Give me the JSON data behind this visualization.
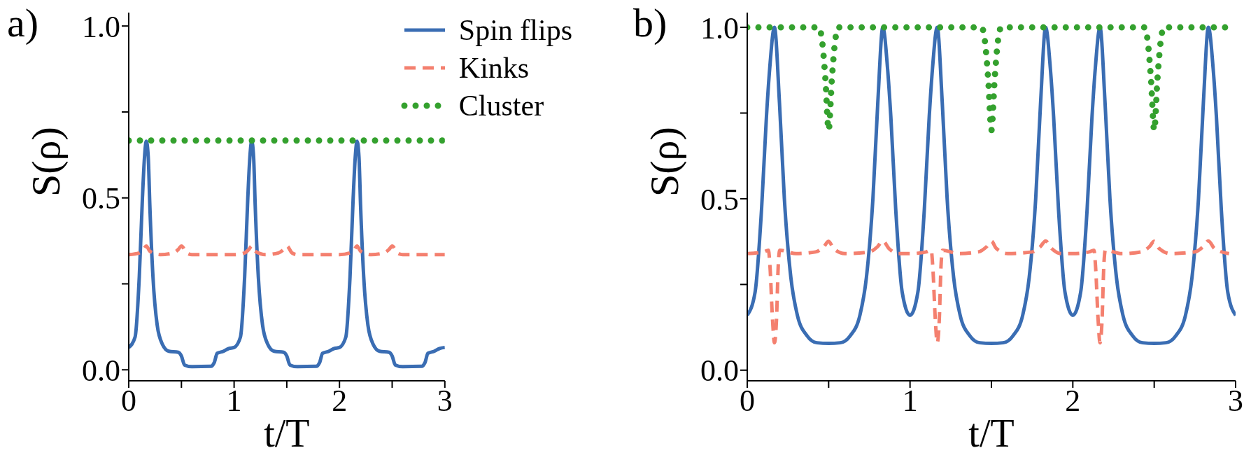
{
  "chart_data": [
    {
      "type": "line",
      "title": "a)",
      "xlabel": "t/T",
      "ylabel": "S(ρ)",
      "xlim": [
        0,
        3
      ],
      "ylim": [
        -0.032,
        1.039
      ],
      "xticks": [
        0,
        {
          "value": 0.5,
          "label": null
        },
        1,
        {
          "value": 1.5,
          "label": null
        },
        2,
        {
          "value": 2.5,
          "label": null
        },
        3
      ],
      "yticks": [
        {
          "value": 0,
          "label": "0.0"
        },
        {
          "value": 0.25,
          "label": null
        },
        {
          "value": 0.5,
          "label": "0.5"
        },
        {
          "value": 0.75,
          "label": null
        },
        {
          "value": 1,
          "label": "1.0"
        }
      ],
      "legend": "top right",
      "marker": "none",
      "series": [
        {
          "name": "Spin flips",
          "color": "#3a6db3",
          "line_style": "solid",
          "x": [
            0,
            0.06,
            0.1,
            0.13,
            0.15,
            0.167,
            0.185,
            0.2,
            0.23,
            0.27,
            0.32,
            0.38,
            0.47,
            0.5,
            0.53,
            0.6,
            0.78,
            0.81,
            0.84,
            0.9,
            0.95,
            1,
            1.06,
            1.1,
            1.13,
            1.15,
            1.167,
            1.185,
            1.2,
            1.23,
            1.27,
            1.32,
            1.38,
            1.47,
            1.5,
            1.53,
            1.6,
            1.78,
            1.81,
            1.84,
            1.9,
            1.95,
            2,
            2.06,
            2.1,
            2.13,
            2.15,
            2.167,
            2.185,
            2.2,
            2.23,
            2.27,
            2.32,
            2.38,
            2.47,
            2.5,
            2.53,
            2.6,
            2.78,
            2.81,
            2.84,
            2.9,
            2.95,
            3
          ],
          "values": [
            0.065,
            0.095,
            0.27,
            0.5,
            0.62,
            0.665,
            0.62,
            0.48,
            0.27,
            0.13,
            0.074,
            0.054,
            0.051,
            0.04,
            0.014,
            0.009,
            0.01,
            0.02,
            0.048,
            0.054,
            0.062,
            0.065,
            0.095,
            0.27,
            0.5,
            0.62,
            0.665,
            0.62,
            0.48,
            0.27,
            0.13,
            0.074,
            0.054,
            0.051,
            0.04,
            0.014,
            0.009,
            0.01,
            0.02,
            0.048,
            0.054,
            0.062,
            0.065,
            0.095,
            0.27,
            0.5,
            0.62,
            0.665,
            0.62,
            0.48,
            0.27,
            0.13,
            0.074,
            0.054,
            0.051,
            0.04,
            0.014,
            0.009,
            0.01,
            0.02,
            0.048,
            0.054,
            0.062,
            0.065
          ]
        },
        {
          "name": "Kinks",
          "color": "#f4806f",
          "line_style": "dashed",
          "x": [
            0,
            0.1,
            0.14,
            0.167,
            0.2,
            0.3,
            0.42,
            0.47,
            0.5,
            0.55,
            0.6,
            0.8,
            0.9,
            1,
            1.1,
            1.14,
            1.167,
            1.2,
            1.3,
            1.42,
            1.47,
            1.5,
            1.55,
            1.6,
            1.8,
            1.9,
            2,
            2.1,
            2.14,
            2.167,
            2.2,
            2.3,
            2.42,
            2.47,
            2.5,
            2.55,
            2.6,
            2.8,
            2.9,
            3
          ],
          "values": [
            0.335,
            0.34,
            0.35,
            0.36,
            0.345,
            0.335,
            0.34,
            0.35,
            0.36,
            0.34,
            0.335,
            0.335,
            0.335,
            0.335,
            0.34,
            0.35,
            0.36,
            0.345,
            0.335,
            0.34,
            0.35,
            0.36,
            0.34,
            0.335,
            0.335,
            0.335,
            0.335,
            0.34,
            0.35,
            0.36,
            0.345,
            0.335,
            0.34,
            0.35,
            0.36,
            0.34,
            0.335,
            0.335,
            0.335,
            0.335
          ]
        },
        {
          "name": "Cluster",
          "color": "#34a12e",
          "line_style": "dotted",
          "x": [
            0,
            3
          ],
          "values": [
            0.667,
            0.667
          ]
        }
      ]
    },
    {
      "type": "line",
      "title": "b)",
      "xlabel": "t/T",
      "ylabel": "S(ρ)",
      "xlim": [
        0,
        3
      ],
      "ylim": [
        -0.031,
        1.043
      ],
      "xticks": [
        0,
        {
          "value": 0.5,
          "label": null
        },
        1,
        {
          "value": 1.5,
          "label": null
        },
        2,
        {
          "value": 2.5,
          "label": null
        },
        3
      ],
      "yticks": [
        {
          "value": 0,
          "label": "0.0"
        },
        {
          "value": 0.25,
          "label": null
        },
        {
          "value": 0.5,
          "label": "0.5"
        },
        {
          "value": 0.75,
          "label": null
        },
        {
          "value": 1,
          "label": "1.0"
        }
      ],
      "marker": "none",
      "series": [
        {
          "color": "#3a6db3",
          "line_style": "solid",
          "x": [
            0,
            0.048,
            0.088,
            0.118,
            0.138,
            0.167,
            0.198,
            0.228,
            0.268,
            0.308,
            0.368,
            0.428,
            0.5,
            0.572,
            0.632,
            0.692,
            0.732,
            0.772,
            0.802,
            0.833,
            0.862,
            0.882,
            0.912,
            0.952,
            1,
            1.048,
            1.088,
            1.118,
            1.138,
            1.167,
            1.198,
            1.228,
            1.268,
            1.308,
            1.368,
            1.428,
            1.5,
            1.572,
            1.632,
            1.692,
            1.732,
            1.772,
            1.802,
            1.833,
            1.862,
            1.882,
            1.912,
            1.952,
            2,
            2.048,
            2.088,
            2.118,
            2.138,
            2.167,
            2.198,
            2.228,
            2.268,
            2.308,
            2.368,
            2.428,
            2.5,
            2.572,
            2.632,
            2.692,
            2.732,
            2.772,
            2.802,
            2.833,
            2.862,
            2.882,
            2.912,
            2.952,
            3
          ],
          "values": [
            0.16,
            0.227,
            0.47,
            0.74,
            0.88,
            1.0,
            0.78,
            0.5,
            0.27,
            0.16,
            0.1,
            0.08,
            0.078,
            0.08,
            0.1,
            0.16,
            0.27,
            0.5,
            0.78,
            1.0,
            0.88,
            0.74,
            0.47,
            0.227,
            0.16,
            0.227,
            0.47,
            0.74,
            0.88,
            1.0,
            0.78,
            0.5,
            0.27,
            0.16,
            0.1,
            0.08,
            0.078,
            0.08,
            0.1,
            0.16,
            0.27,
            0.5,
            0.78,
            1.0,
            0.88,
            0.74,
            0.47,
            0.227,
            0.16,
            0.227,
            0.47,
            0.74,
            0.88,
            1.0,
            0.78,
            0.5,
            0.27,
            0.16,
            0.1,
            0.08,
            0.078,
            0.08,
            0.1,
            0.16,
            0.27,
            0.5,
            0.78,
            1.0,
            0.88,
            0.74,
            0.47,
            0.227,
            0.16
          ]
        },
        {
          "color": "#f4806f",
          "line_style": "dashed",
          "x": [
            0,
            0.1,
            0.13,
            0.14,
            0.155,
            0.167,
            0.18,
            0.19,
            0.2,
            0.3,
            0.42,
            0.47,
            0.5,
            0.53,
            0.6,
            0.75,
            0.8,
            0.833,
            0.87,
            0.93,
            1,
            1.1,
            1.13,
            1.14,
            1.155,
            1.167,
            1.18,
            1.19,
            1.2,
            1.3,
            1.42,
            1.47,
            1.5,
            1.53,
            1.6,
            1.75,
            1.8,
            1.833,
            1.87,
            1.93,
            2,
            2.1,
            2.13,
            2.14,
            2.155,
            2.167,
            2.18,
            2.19,
            2.2,
            2.3,
            2.42,
            2.47,
            2.5,
            2.53,
            2.6,
            2.75,
            2.8,
            2.833,
            2.87,
            2.96
          ],
          "values": [
            0.34,
            0.345,
            0.35,
            0.3,
            0.15,
            0.08,
            0.15,
            0.3,
            0.35,
            0.34,
            0.345,
            0.36,
            0.376,
            0.355,
            0.34,
            0.345,
            0.36,
            0.377,
            0.355,
            0.34,
            0.34,
            0.345,
            0.35,
            0.3,
            0.15,
            0.08,
            0.15,
            0.3,
            0.35,
            0.34,
            0.345,
            0.36,
            0.376,
            0.355,
            0.34,
            0.345,
            0.36,
            0.377,
            0.355,
            0.34,
            0.34,
            0.345,
            0.35,
            0.3,
            0.15,
            0.08,
            0.15,
            0.3,
            0.35,
            0.34,
            0.345,
            0.36,
            0.376,
            0.355,
            0.34,
            0.345,
            0.36,
            0.377,
            0.355,
            0.34
          ]
        },
        {
          "color": "#34a12e",
          "line_style": "dotted",
          "x": [
            0,
            0.44,
            0.46,
            0.48,
            0.5,
            0.52,
            0.54,
            0.56,
            1,
            1.44,
            1.46,
            1.48,
            1.5,
            1.52,
            1.54,
            1.56,
            2,
            2.44,
            2.46,
            2.48,
            2.5,
            2.52,
            2.54,
            2.56,
            3
          ],
          "values": [
            1.0,
            1.0,
            0.96,
            0.85,
            0.7,
            0.85,
            0.96,
            1.0,
            1.0,
            1.0,
            0.96,
            0.85,
            0.7,
            0.85,
            0.96,
            1.0,
            1.0,
            1.0,
            0.96,
            0.85,
            0.7,
            0.85,
            0.96,
            1.0,
            1.0
          ]
        }
      ]
    }
  ]
}
